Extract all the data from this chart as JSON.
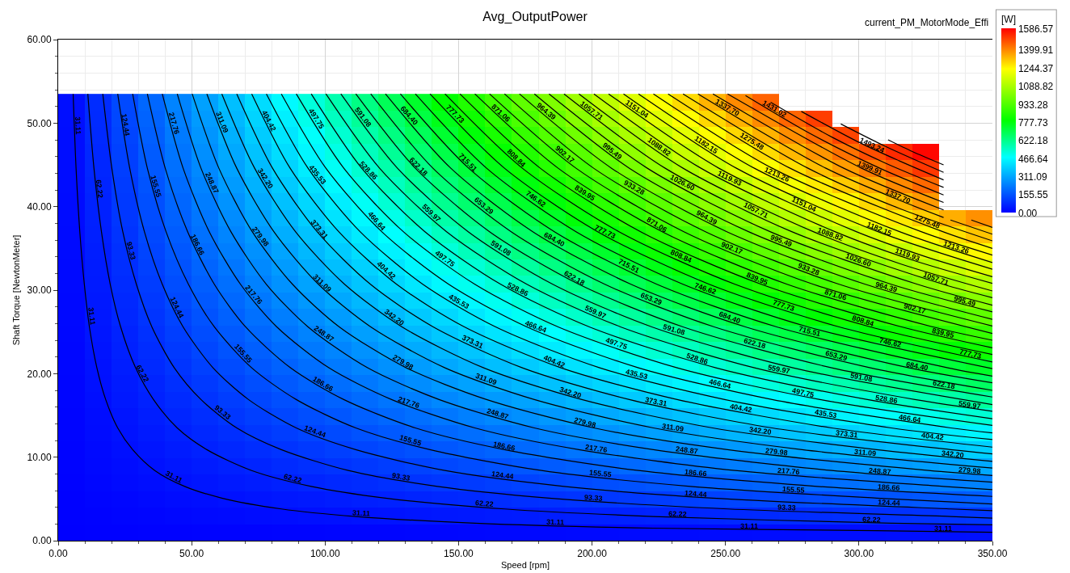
{
  "chart_data": {
    "type": "heatmap",
    "title": "Avg_OutputPower",
    "xlabel": "Speed [rpm]",
    "ylabel": "Shaft Torque [NewtonMeter]",
    "clabel": "[W]",
    "annotations": [
      "current_PM_MotorMode_Effi"
    ],
    "x": [
      5,
      15,
      25,
      35,
      45,
      55,
      65,
      75,
      85,
      95,
      105,
      115,
      125,
      135,
      145,
      155,
      165,
      175,
      185,
      195,
      205,
      215,
      225,
      235,
      245,
      255,
      265,
      275,
      285,
      295,
      305,
      315,
      325,
      335,
      345
    ],
    "y": [
      52.51,
      50.53,
      48.55,
      46.56,
      44.58,
      42.6,
      40.62,
      38.64,
      36.66,
      34.68,
      32.69,
      30.71,
      28.73,
      26.75,
      24.77,
      22.79,
      20.81,
      18.82,
      16.84,
      14.86,
      12.88,
      10.9,
      8.92,
      6.94,
      4.95,
      2.97,
      0.99
    ],
    "cells": [
      [
        27,
        82,
        137,
        192,
        247,
        301,
        356,
        411,
        466,
        520,
        575,
        630,
        685,
        740,
        794,
        849,
        904,
        959,
        1013,
        1068,
        1123,
        1178,
        1233,
        1287,
        1342,
        1397,
        1452,
        null,
        null,
        null,
        null,
        null,
        null,
        null,
        null
      ],
      [
        26,
        79,
        132,
        184,
        237,
        290,
        343,
        395,
        448,
        501,
        553,
        606,
        659,
        711,
        764,
        817,
        870,
        922,
        975,
        1028,
        1080,
        1133,
        1186,
        1239,
        1291,
        1344,
        1397,
        1449,
        1502,
        null,
        null,
        null,
        null,
        null,
        null
      ],
      [
        25,
        76,
        127,
        177,
        228,
        278,
        329,
        380,
        430,
        481,
        532,
        582,
        633,
        683,
        734,
        785,
        835,
        886,
        937,
        987,
        1038,
        1089,
        1139,
        1190,
        1240,
        1291,
        1342,
        1392,
        1443,
        1494,
        null,
        null,
        null,
        null,
        null
      ],
      [
        24,
        73,
        121,
        170,
        218,
        267,
        316,
        364,
        413,
        461,
        510,
        558,
        607,
        655,
        704,
        753,
        801,
        850,
        898,
        947,
        995,
        1044,
        1092,
        1141,
        1190,
        1238,
        1287,
        1335,
        1384,
        1432,
        1481,
        1529,
        1578,
        null,
        null
      ],
      [
        23,
        70,
        116,
        163,
        209,
        256,
        302,
        349,
        395,
        442,
        488,
        534,
        581,
        627,
        674,
        720,
        767,
        813,
        860,
        906,
        953,
        999,
        1046,
        1092,
        1139,
        1185,
        1232,
        1278,
        1325,
        1371,
        1418,
        1464,
        1511,
        null,
        null
      ],
      [
        22,
        67,
        111,
        155,
        200,
        244,
        289,
        333,
        377,
        422,
        466,
        511,
        555,
        599,
        644,
        688,
        733,
        777,
        821,
        866,
        910,
        955,
        999,
        1043,
        1088,
        1132,
        1177,
        1221,
        1265,
        1310,
        1354,
        1399,
        1443,
        null,
        null
      ],
      [
        21,
        63,
        106,
        148,
        190,
        233,
        275,
        317,
        360,
        402,
        444,
        487,
        529,
        571,
        614,
        656,
        698,
        741,
        783,
        825,
        868,
        910,
        952,
        995,
        1037,
        1079,
        1122,
        1164,
        1206,
        1249,
        1291,
        1333,
        1376,
        null,
        null
      ],
      [
        20,
        60,
        101,
        141,
        181,
        221,
        262,
        302,
        342,
        382,
        423,
        463,
        503,
        543,
        584,
        624,
        664,
        704,
        745,
        785,
        825,
        865,
        906,
        946,
        986,
        1026,
        1067,
        1107,
        1147,
        1187,
        1228,
        1268,
        1308,
        1348,
        1389
      ],
      [
        19,
        57,
        95,
        134,
        172,
        210,
        248,
        286,
        325,
        363,
        401,
        439,
        477,
        515,
        554,
        592,
        630,
        668,
        706,
        744,
        783,
        821,
        859,
        897,
        935,
        974,
        1012,
        1050,
        1088,
        1126,
        1164,
        1203,
        1241,
        1279,
        1317
      ],
      [
        18,
        54,
        90,
        126,
        162,
        199,
        235,
        271,
        307,
        343,
        379,
        415,
        451,
        487,
        523,
        560,
        596,
        632,
        668,
        704,
        740,
        776,
        812,
        848,
        885,
        921,
        957,
        993,
        1029,
        1065,
        1101,
        1137,
        1173,
        1209,
        1246
      ],
      [
        17,
        51,
        85,
        119,
        153,
        187,
        221,
        255,
        289,
        323,
        357,
        391,
        425,
        459,
        493,
        527,
        561,
        595,
        630,
        664,
        698,
        732,
        766,
        800,
        834,
        868,
        902,
        936,
        970,
        1004,
        1038,
        1072,
        1106,
        1140,
        1174
      ],
      [
        16,
        48,
        80,
        112,
        144,
        176,
        208,
        240,
        272,
        304,
        336,
        367,
        399,
        431,
        463,
        495,
        527,
        559,
        591,
        623,
        655,
        687,
        719,
        751,
        783,
        815,
        847,
        879,
        911,
        943,
        975,
        1007,
        1038,
        1070,
        1102
      ],
      [
        15,
        45,
        75,
        105,
        134,
        164,
        194,
        224,
        254,
        284,
        314,
        344,
        373,
        403,
        433,
        463,
        493,
        523,
        553,
        583,
        613,
        642,
        672,
        702,
        732,
        762,
        792,
        822,
        852,
        881,
        911,
        941,
        971,
        1001,
        1031
      ],
      [
        14,
        42,
        70,
        97,
        125,
        153,
        181,
        209,
        236,
        264,
        292,
        320,
        348,
        375,
        403,
        431,
        459,
        487,
        514,
        542,
        570,
        598,
        626,
        653,
        681,
        709,
        737,
        765,
        792,
        820,
        848,
        876,
        904,
        931,
        959
      ],
      [
        13,
        39,
        64,
        90,
        116,
        142,
        167,
        193,
        219,
        244,
        270,
        296,
        322,
        347,
        373,
        399,
        425,
        450,
        476,
        502,
        527,
        553,
        579,
        605,
        630,
        656,
        682,
        708,
        733,
        759,
        785,
        810,
        836,
        862,
        888
      ],
      [
        12,
        35,
        59,
        83,
        106,
        130,
        154,
        177,
        201,
        225,
        248,
        272,
        296,
        319,
        343,
        367,
        390,
        414,
        438,
        461,
        485,
        509,
        532,
        556,
        580,
        603,
        627,
        650,
        674,
        698,
        721,
        745,
        769,
        792,
        816
      ],
      [
        11,
        32,
        54,
        76,
        97,
        119,
        140,
        162,
        183,
        205,
        227,
        248,
        270,
        291,
        313,
        334,
        356,
        378,
        399,
        421,
        442,
        464,
        486,
        507,
        529,
        550,
        572,
        593,
        615,
        637,
        658,
        680,
        701,
        723,
        744
      ],
      [
        10,
        29,
        49,
        68,
        88,
        107,
        127,
        146,
        166,
        185,
        205,
        224,
        244,
        263,
        283,
        302,
        322,
        341,
        361,
        380,
        400,
        419,
        439,
        458,
        478,
        497,
        517,
        536,
        556,
        575,
        595,
        614,
        634,
        653,
        673
      ],
      [
        9,
        26,
        44,
        61,
        78,
        96,
        113,
        131,
        148,
        166,
        183,
        200,
        218,
        235,
        253,
        270,
        288,
        305,
        322,
        340,
        357,
        375,
        392,
        410,
        427,
        444,
        462,
        479,
        497,
        514,
        532,
        549,
        566,
        584,
        601
      ],
      [
        8,
        23,
        38,
        54,
        69,
        84,
        100,
        115,
        131,
        146,
        161,
        177,
        192,
        207,
        223,
        238,
        253,
        269,
        284,
        299,
        315,
        330,
        345,
        361,
        376,
        392,
        407,
        422,
        438,
        453,
        468,
        484,
        499,
        514,
        530
      ],
      [
        7,
        20,
        33,
        46,
        60,
        73,
        86,
        100,
        113,
        126,
        139,
        153,
        166,
        179,
        193,
        206,
        219,
        232,
        246,
        259,
        272,
        285,
        299,
        312,
        325,
        339,
        352,
        365,
        378,
        392,
        405,
        418,
        432,
        445,
        458
      ],
      [
        6,
        17,
        28,
        39,
        50,
        62,
        73,
        84,
        95,
        106,
        118,
        129,
        140,
        151,
        162,
        174,
        185,
        196,
        207,
        218,
        230,
        241,
        252,
        263,
        274,
        286,
        297,
        308,
        319,
        330,
        342,
        353,
        364,
        375,
        387
      ],
      [
        5,
        14,
        23,
        32,
        41,
        50,
        59,
        68,
        78,
        87,
        96,
        105,
        114,
        123,
        132,
        141,
        151,
        160,
        169,
        178,
        187,
        196,
        205,
        215,
        224,
        233,
        242,
        251,
        260,
        269,
        278,
        288,
        297,
        306,
        315
      ],
      [
        4,
        11,
        18,
        25,
        32,
        39,
        46,
        53,
        60,
        67,
        74,
        81,
        88,
        95,
        102,
        109,
        116,
        123,
        130,
        138,
        145,
        152,
        159,
        166,
        173,
        180,
        187,
        194,
        201,
        208,
        215,
        222,
        229,
        236,
        243
      ],
      [
        2,
        7,
        12,
        17,
        22,
        27,
        32,
        37,
        42,
        47,
        52,
        57,
        62,
        67,
        72,
        77,
        82,
        87,
        92,
        97,
        102,
        107,
        112,
        117,
        122,
        127,
        132,
        137,
        142,
        147,
        152,
        157,
        162,
        167,
        172
      ],
      [
        1,
        4,
        7,
        10,
        13,
        16,
        19,
        22,
        25,
        28,
        30,
        33,
        36,
        39,
        42,
        45,
        48,
        51,
        54,
        57,
        60,
        62,
        65,
        68,
        71,
        74,
        77,
        80,
        83,
        86,
        89,
        91,
        94,
        97,
        100
      ],
      [
        0,
        1,
        2,
        3,
        4,
        5,
        5,
        6,
        7,
        8,
        9,
        10,
        10,
        11,
        12,
        13,
        14,
        14,
        15,
        16,
        17,
        18,
        19,
        19,
        20,
        21,
        22,
        23,
        24,
        24,
        25,
        26,
        27,
        28,
        29
      ]
    ],
    "clim": [
      0,
      1586.57
    ],
    "cticks": [
      {
        "value": 0,
        "label": "0.00"
      },
      155.55,
      311.09,
      466.64,
      622.18,
      777.73,
      933.28,
      1088.82,
      1244.37,
      1399.91,
      1586.57
    ],
    "xlim": [
      0,
      350
    ],
    "xticks": [
      {
        "value": 0,
        "label": "0.00"
      },
      {
        "value": 10,
        "label": null
      },
      {
        "value": 20,
        "label": null
      },
      {
        "value": 30,
        "label": null
      },
      {
        "value": 40,
        "label": null
      },
      {
        "value": 50,
        "label": "50.00"
      },
      {
        "value": 60,
        "label": null
      },
      {
        "value": 70,
        "label": null
      },
      {
        "value": 80,
        "label": null
      },
      {
        "value": 90,
        "label": null
      },
      {
        "value": 100,
        "label": "100.00"
      },
      {
        "value": 110,
        "label": null
      },
      {
        "value": 120,
        "label": null
      },
      {
        "value": 130,
        "label": null
      },
      {
        "value": 140,
        "label": null
      },
      {
        "value": 150,
        "label": "150.00"
      },
      {
        "value": 160,
        "label": null
      },
      {
        "value": 170,
        "label": null
      },
      {
        "value": 180,
        "label": null
      },
      {
        "value": 190,
        "label": null
      },
      {
        "value": 200,
        "label": "200.00"
      },
      {
        "value": 210,
        "label": null
      },
      {
        "value": 220,
        "label": null
      },
      {
        "value": 230,
        "label": null
      },
      {
        "value": 240,
        "label": null
      },
      {
        "value": 250,
        "label": "250.00"
      },
      {
        "value": 260,
        "label": null
      },
      {
        "value": 270,
        "label": null
      },
      {
        "value": 280,
        "label": null
      },
      {
        "value": 290,
        "label": null
      },
      {
        "value": 300,
        "label": "300.00"
      },
      {
        "value": 310,
        "label": null
      },
      {
        "value": 320,
        "label": null
      },
      {
        "value": 330,
        "label": null
      },
      {
        "value": 340,
        "label": null
      },
      {
        "value": 350,
        "label": "350.00"
      }
    ],
    "ylim": [
      0,
      60
    ],
    "yticks": [
      {
        "value": 0,
        "label": "0.00"
      },
      {
        "value": 2,
        "label": null
      },
      {
        "value": 4,
        "label": null
      },
      {
        "value": 6,
        "label": null
      },
      {
        "value": 8,
        "label": null
      },
      {
        "value": 10,
        "label": "10.00"
      },
      {
        "value": 12,
        "label": null
      },
      {
        "value": 14,
        "label": null
      },
      {
        "value": 16,
        "label": null
      },
      {
        "value": 18,
        "label": null
      },
      {
        "value": 20,
        "label": "20.00"
      },
      {
        "value": 22,
        "label": null
      },
      {
        "value": 24,
        "label": null
      },
      {
        "value": 26,
        "label": null
      },
      {
        "value": 28,
        "label": null
      },
      {
        "value": 30,
        "label": "30.00"
      },
      {
        "value": 32,
        "label": null
      },
      {
        "value": 34,
        "label": null
      },
      {
        "value": 36,
        "label": null
      },
      {
        "value": 38,
        "label": null
      },
      {
        "value": 40,
        "label": "40.00"
      },
      {
        "value": 42,
        "label": null
      },
      {
        "value": 44,
        "label": null
      },
      {
        "value": 46,
        "label": null
      },
      {
        "value": 48,
        "label": null
      },
      {
        "value": 50,
        "label": "50.00"
      },
      {
        "value": 52,
        "label": null
      },
      {
        "value": 54,
        "label": null
      },
      {
        "value": 56,
        "label": null
      },
      {
        "value": 58,
        "label": null
      },
      {
        "value": 60,
        "label": "60.00"
      }
    ],
    "grid": true,
    "series": [
      {
        "name": "31.11",
        "type": "line",
        "color": "#000000",
        "x": [
          5.6,
          6.7,
          8.1,
          9.8,
          11.7,
          14.5,
          17.8,
          22.3,
          27.9,
          36.2,
          47.4,
          61.3,
          83.6,
          111.5,
          156.1,
          222.9,
          306.6,
          350
        ],
        "values": [
          53.5,
          44.6,
          37.0,
          30.7,
          25.6,
          20.7,
          16.9,
          13.5,
          10.9,
          8.4,
          6.5,
          5.1,
          3.8,
          2.9,
          2.1,
          1.5,
          1.2,
          1.0
        ]
      },
      {
        "name": "62.22",
        "type": "line",
        "color": "#000000",
        "x": [
          11.1,
          13.4,
          16.2,
          19.5,
          23.4,
          29.0,
          35.7,
          44.6,
          55.7,
          72.5,
          94.8,
          122.6,
          167.2,
          222.9,
          312.1,
          350
        ],
        "values": [
          53.5,
          44.6,
          37.0,
          30.7,
          25.6,
          20.7,
          16.9,
          13.5,
          10.9,
          8.4,
          6.5,
          5.1,
          3.8,
          2.9,
          2.1,
          1.9
        ]
      },
      {
        "name": "93.33",
        "type": "line",
        "color": "#000000",
        "x": [
          16.7,
          20.1,
          24.2,
          29.3,
          35.1,
          43.5,
          53.5,
          66.9,
          83.6,
          108.7,
          142.1,
          183.9,
          250.8,
          334.4,
          350
        ],
        "values": [
          53.5,
          44.6,
          37.0,
          30.7,
          25.6,
          20.7,
          16.9,
          13.5,
          10.9,
          8.4,
          6.5,
          5.1,
          3.8,
          2.9,
          2.7
        ]
      },
      {
        "name": "124.44",
        "type": "line",
        "color": "#000000",
        "x": [
          22.3,
          26.8,
          32.3,
          39.0,
          46.8,
          58.0,
          71.3,
          89.2,
          111.5,
          144.9,
          189.5,
          245.2,
          334.4,
          350
        ],
        "values": [
          53.5,
          44.6,
          37.0,
          30.7,
          25.6,
          20.7,
          16.9,
          13.5,
          10.9,
          8.4,
          6.5,
          5.1,
          3.8,
          3.6
        ]
      },
      {
        "name": "155.55",
        "type": "line",
        "color": "#000000",
        "x": [
          27.9,
          33.4,
          40.4,
          48.8,
          58.5,
          72.5,
          89.2,
          111.5,
          139.3,
          181.1,
          236.9,
          306.6,
          350
        ],
        "values": [
          53.5,
          44.6,
          37.0,
          30.7,
          25.6,
          20.7,
          16.9,
          13.5,
          10.9,
          8.4,
          6.5,
          5.1,
          4.4
        ]
      },
      {
        "name": "186.66",
        "type": "line",
        "color": "#000000",
        "x": [
          33.4,
          40.1,
          48.5,
          58.5,
          70.2,
          87.0,
          107.0,
          133.8,
          167.2,
          217.4,
          284.3,
          350
        ],
        "values": [
          53.5,
          44.6,
          37.0,
          30.7,
          25.6,
          20.7,
          16.9,
          13.5,
          10.9,
          8.4,
          6.5,
          5.3
        ]
      },
      {
        "name": "217.76",
        "type": "line",
        "color": "#000000",
        "x": [
          39.0,
          46.8,
          56.6,
          68.3,
          81.9,
          101.4,
          124.9,
          156.1,
          195.1,
          253.6,
          331.6,
          350
        ],
        "values": [
          53.5,
          44.6,
          37.0,
          30.7,
          25.6,
          20.7,
          16.9,
          13.5,
          10.9,
          8.4,
          6.5,
          6.1
        ]
      },
      {
        "name": "248.87",
        "type": "line",
        "color": "#000000",
        "x": [
          44.6,
          53.5,
          64.7,
          78.0,
          93.6,
          115.9,
          142.7,
          178.4,
          223.0,
          289.8,
          350
        ],
        "values": [
          53.5,
          44.6,
          37.0,
          30.7,
          25.6,
          20.7,
          16.9,
          13.5,
          10.9,
          8.4,
          7.0
        ]
      },
      {
        "name": "279.98",
        "type": "line",
        "color": "#000000",
        "x": [
          50.2,
          60.2,
          72.7,
          87.8,
          105.3,
          130.4,
          160.5,
          200.7,
          250.8,
          326.1,
          350
        ],
        "values": [
          53.5,
          44.6,
          37.0,
          30.7,
          25.6,
          20.7,
          16.9,
          13.5,
          10.9,
          8.4,
          7.8
        ]
      },
      {
        "name": "311.09",
        "type": "line",
        "color": "#000000",
        "x": [
          55.7,
          66.9,
          80.8,
          97.5,
          117.1,
          144.9,
          178.4,
          223.0,
          278.7,
          350
        ],
        "values": [
          53.5,
          44.6,
          37.0,
          30.7,
          25.6,
          20.7,
          16.9,
          13.5,
          10.9,
          8.7
        ]
      },
      {
        "name": "342.20",
        "type": "line",
        "color": "#000000",
        "x": [
          61.3,
          73.6,
          88.9,
          107.3,
          128.8,
          159.4,
          196.2,
          245.2,
          306.6,
          350
        ],
        "values": [
          53.5,
          44.6,
          37.0,
          30.7,
          25.6,
          20.7,
          16.9,
          13.5,
          10.9,
          9.5
        ]
      },
      {
        "name": "373.31",
        "type": "line",
        "color": "#000000",
        "x": [
          66.9,
          80.3,
          97.0,
          117.0,
          140.5,
          173.9,
          214.0,
          267.5,
          334.4,
          350
        ],
        "values": [
          53.5,
          44.6,
          37.0,
          30.7,
          25.6,
          20.7,
          16.9,
          13.5,
          10.9,
          10.4
        ]
      },
      {
        "name": "404.42",
        "type": "line",
        "color": "#000000",
        "x": [
          72.5,
          86.9,
          105.1,
          126.8,
          152.2,
          188.4,
          231.9,
          289.8,
          350
        ],
        "values": [
          53.5,
          44.6,
          37.0,
          30.7,
          25.6,
          20.7,
          16.9,
          13.5,
          11.2
        ]
      },
      {
        "name": "435.53",
        "type": "line",
        "color": "#000000",
        "x": [
          78.0,
          93.6,
          113.1,
          136.6,
          163.9,
          202.9,
          249.7,
          312.1,
          350
        ],
        "values": [
          53.5,
          44.6,
          37.0,
          30.7,
          25.6,
          20.7,
          16.9,
          13.5,
          12.1
        ]
      },
      {
        "name": "466.64",
        "type": "line",
        "color": "#000000",
        "x": [
          83.6,
          100.3,
          121.2,
          146.3,
          175.6,
          217.4,
          267.5,
          334.4,
          350
        ],
        "values": [
          53.5,
          44.6,
          37.0,
          30.7,
          25.6,
          20.7,
          16.9,
          13.5,
          12.9
        ]
      },
      {
        "name": "497.75",
        "type": "line",
        "color": "#000000",
        "x": [
          89.2,
          107.0,
          129.3,
          156.1,
          187.3,
          231.9,
          285.4,
          350
        ],
        "values": [
          53.5,
          44.6,
          37.0,
          30.7,
          25.6,
          20.7,
          16.9,
          13.8
        ]
      },
      {
        "name": "528.86",
        "type": "line",
        "color": "#000000",
        "x": [
          94.8,
          113.7,
          137.4,
          165.8,
          199.0,
          246.4,
          303.2,
          350
        ],
        "values": [
          53.5,
          44.6,
          37.0,
          30.7,
          25.6,
          20.7,
          16.9,
          14.6
        ]
      },
      {
        "name": "559.97",
        "type": "line",
        "color": "#000000",
        "x": [
          100.3,
          120.4,
          145.5,
          175.6,
          210.7,
          260.9,
          321.0,
          350
        ],
        "values": [
          53.5,
          44.6,
          37.0,
          30.7,
          25.6,
          20.7,
          16.9,
          15.5
        ]
      },
      {
        "name": "591.08",
        "type": "line",
        "color": "#000000",
        "x": [
          105.9,
          127.1,
          153.6,
          185.3,
          222.4,
          275.3,
          350
        ],
        "values": [
          53.5,
          44.6,
          37.0,
          30.7,
          25.6,
          20.7,
          16.3
        ]
      },
      {
        "name": "622.18",
        "type": "line",
        "color": "#000000",
        "x": [
          111.5,
          133.8,
          161.6,
          195.1,
          234.1,
          289.8,
          350
        ],
        "values": [
          53.5,
          44.6,
          37.0,
          30.7,
          25.6,
          20.7,
          17.2
        ]
      },
      {
        "name": "653.29",
        "type": "line",
        "color": "#000000",
        "x": [
          117.1,
          140.4,
          169.7,
          204.8,
          245.8,
          304.3,
          350
        ],
        "values": [
          53.5,
          44.6,
          37.0,
          30.7,
          25.6,
          20.7,
          18.0
        ]
      },
      {
        "name": "684.40",
        "type": "line",
        "color": "#000000",
        "x": [
          122.6,
          147.1,
          177.8,
          214.6,
          257.5,
          318.8,
          350
        ],
        "values": [
          53.5,
          44.6,
          37.0,
          30.7,
          25.6,
          20.7,
          18.9
        ]
      },
      {
        "name": "715.51",
        "type": "line",
        "color": "#000000",
        "x": [
          128.2,
          153.8,
          185.9,
          224.3,
          269.2,
          333.3,
          350
        ],
        "values": [
          53.5,
          44.6,
          37.0,
          30.7,
          25.6,
          20.7,
          19.7
        ]
      },
      {
        "name": "746.62",
        "type": "line",
        "color": "#000000",
        "x": [
          133.8,
          160.5,
          194.0,
          234.1,
          280.9,
          350
        ],
        "values": [
          53.5,
          44.6,
          37.0,
          30.7,
          25.6,
          20.6
        ]
      },
      {
        "name": "777.73",
        "type": "line",
        "color": "#000000",
        "x": [
          139.3,
          167.2,
          202.1,
          243.9,
          292.6,
          350
        ],
        "values": [
          53.5,
          44.6,
          37.0,
          30.7,
          25.6,
          21.4
        ]
      },
      {
        "name": "808.84",
        "type": "line",
        "color": "#000000",
        "x": [
          144.9,
          173.9,
          210.1,
          253.6,
          304.3,
          350
        ],
        "values": [
          53.5,
          44.6,
          37.0,
          30.7,
          25.6,
          22.3
        ]
      },
      {
        "name": "839.95",
        "type": "line",
        "color": "#000000",
        "x": [
          150.5,
          180.6,
          218.2,
          263.4,
          316.0,
          350
        ],
        "values": [
          53.5,
          44.6,
          37.0,
          30.7,
          25.6,
          23.1
        ]
      },
      {
        "name": "871.06",
        "type": "line",
        "color": "#000000",
        "x": [
          156.1,
          187.3,
          226.3,
          273.1,
          327.7,
          350
        ],
        "values": [
          53.5,
          44.6,
          37.0,
          30.7,
          25.6,
          24.0
        ]
      },
      {
        "name": "902.17",
        "type": "line",
        "color": "#000000",
        "x": [
          161.6,
          194.0,
          234.4,
          282.9,
          350
        ],
        "values": [
          53.5,
          44.6,
          37.0,
          30.7,
          24.8
        ]
      },
      {
        "name": "933.28",
        "type": "line",
        "color": "#000000",
        "x": [
          167.2,
          200.6,
          242.5,
          292.6,
          350
        ],
        "values": [
          53.5,
          44.6,
          37.0,
          30.7,
          25.7
        ]
      },
      {
        "name": "964.39",
        "type": "line",
        "color": "#000000",
        "x": [
          172.8,
          207.3,
          250.5,
          302.4,
          350
        ],
        "values": [
          53.5,
          44.6,
          37.0,
          30.7,
          26.5
        ]
      },
      {
        "name": "995.49",
        "type": "line",
        "color": "#000000",
        "x": [
          178.4,
          214.0,
          258.6,
          312.1,
          350
        ],
        "values": [
          53.5,
          44.6,
          37.0,
          30.7,
          27.4
        ]
      },
      {
        "name": "1026.60",
        "type": "line",
        "color": "#000000",
        "x": [
          183.9,
          220.7,
          266.7,
          321.9,
          350
        ],
        "values": [
          53.5,
          44.6,
          37.0,
          30.7,
          28.2
        ]
      },
      {
        "name": "1057.71",
        "type": "line",
        "color": "#000000",
        "x": [
          189.5,
          227.4,
          274.8,
          331.6,
          350
        ],
        "values": [
          53.5,
          44.6,
          37.0,
          30.7,
          29.1
        ]
      },
      {
        "name": "1088.82",
        "type": "line",
        "color": "#000000",
        "x": [
          195.1,
          234.1,
          282.9,
          316.0,
          350
        ],
        "values": [
          53.5,
          44.6,
          37.0,
          33.1,
          29.9
        ]
      },
      {
        "name": "1119.93",
        "type": "line",
        "color": "#000000",
        "x": [
          200.7,
          240.8,
          291.0,
          320.0,
          350
        ],
        "values": [
          53.5,
          44.6,
          37.0,
          33.6,
          30.8
        ]
      },
      {
        "name": "1151.04",
        "type": "line",
        "color": "#000000",
        "x": [
          206.2,
          247.5,
          299.0,
          325.0,
          350
        ],
        "values": [
          53.5,
          44.6,
          37.0,
          34.0,
          31.6
        ]
      },
      {
        "name": "1182.15",
        "type": "line",
        "color": "#000000",
        "x": [
          211.8,
          254.1,
          307.1,
          350
        ],
        "values": [
          53.5,
          44.6,
          37.0,
          32.5
        ]
      },
      {
        "name": "1213.26",
        "type": "line",
        "color": "#000000",
        "x": [
          217.4,
          260.8,
          315.2,
          350
        ],
        "values": [
          53.5,
          44.6,
          37.0,
          33.3
        ]
      },
      {
        "type": "line",
        "color": "#000000",
        "x": [
          223.0,
          267.5,
          323.3,
          350
        ],
        "values": [
          53.5,
          44.6,
          37.0,
          34.2
        ]
      },
      {
        "name": "1275.48",
        "type": "line",
        "color": "#000000",
        "x": [
          228.5,
          274.2,
          331.4,
          350
        ],
        "values": [
          53.5,
          44.6,
          37.0,
          35.0
        ]
      },
      {
        "type": "line",
        "color": "#000000",
        "x": [
          234.1,
          280.9,
          315.0,
          350
        ],
        "values": [
          53.5,
          44.6,
          39.8,
          35.9
        ]
      },
      {
        "name": "1337.70",
        "type": "line",
        "color": "#000000",
        "x": [
          239.7,
          287.6,
          318.0,
          331.7,
          333.0,
          334.3,
          350
        ],
        "values": [
          53.5,
          44.6,
          40.4,
          38.7,
          null,
          38.4,
          36.7
        ]
      },
      {
        "type": "line",
        "color": "#000000",
        "x": [
          245.3,
          294.3,
          331.7,
          337.0,
          342.1,
          350
        ],
        "values": [
          53.5,
          44.6,
          39.6,
          null,
          38.4,
          37.5
        ]
      },
      {
        "name": "1399.91",
        "type": "line",
        "color": "#000000",
        "x": [
          250.8,
          301.0,
          331.7
        ],
        "values": [
          53.5,
          44.6,
          40.5
        ]
      },
      {
        "name": "1431.02",
        "type": "line",
        "color": "#000000",
        "x": [
          257.5,
          282.0,
          307.8,
          331.7
        ],
        "values": [
          53.3,
          48.7,
          44.6,
          41.4
        ]
      },
      {
        "type": "line",
        "color": "#000000",
        "x": [
          266.9,
          290.0,
          310.0,
          331.7
        ],
        "values": [
          52.5,
          48.3,
          45.2,
          42.3
        ]
      },
      {
        "name": "1493.24",
        "type": "line",
        "color": "#000000",
        "x": [
          278.4,
          300.0,
          315.0,
          331.7
        ],
        "values": [
          51.4,
          47.7,
          45.5,
          43.2
        ]
      },
      {
        "type": "line",
        "color": "#000000",
        "x": [
          293.2,
          310.0,
          331.7
        ],
        "values": [
          49.9,
          47.2,
          44.1
        ]
      },
      {
        "type": "line",
        "color": "#000000",
        "x": [
          310.9,
          320.0,
          331.7
        ],
        "values": [
          48.0,
          46.6,
          45.0
        ]
      }
    ]
  }
}
